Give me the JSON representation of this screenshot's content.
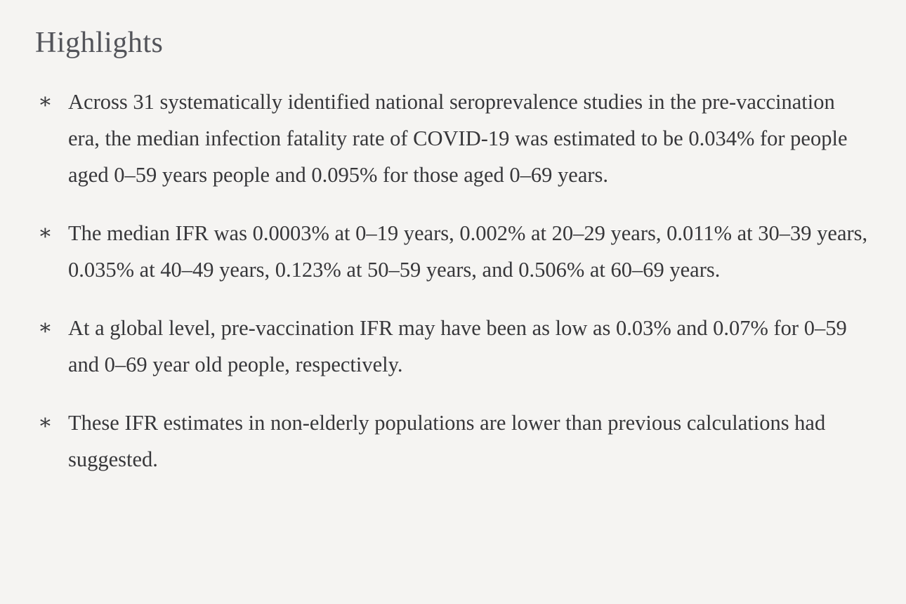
{
  "page": {
    "background_color": "#f5f4f2",
    "body_text_color": "#37373a",
    "title_color": "#53545a"
  },
  "highlights": {
    "title": "Highlights",
    "bullet_glyph": "∗",
    "items": [
      "Across 31 systematically identified national seroprevalence studies in the pre-vaccination era, the median infection fatality rate of COVID-19 was estimated to be 0.034% for people aged 0–59 years people and 0.095% for those aged 0–69 years.",
      "The median IFR was 0.0003% at 0–19 years, 0.002% at 20–29 years, 0.011% at 30–39 years, 0.035% at 40–49 years, 0.123% at 50–59 years, and 0.506% at 60–69 years.",
      "At a global level, pre-vaccination IFR may have been as low as 0.03% and 0.07% for 0–59 and 0–69 year old people, respectively.",
      "These IFR estimates in non-elderly populations are lower than previous calculations had suggested."
    ]
  }
}
